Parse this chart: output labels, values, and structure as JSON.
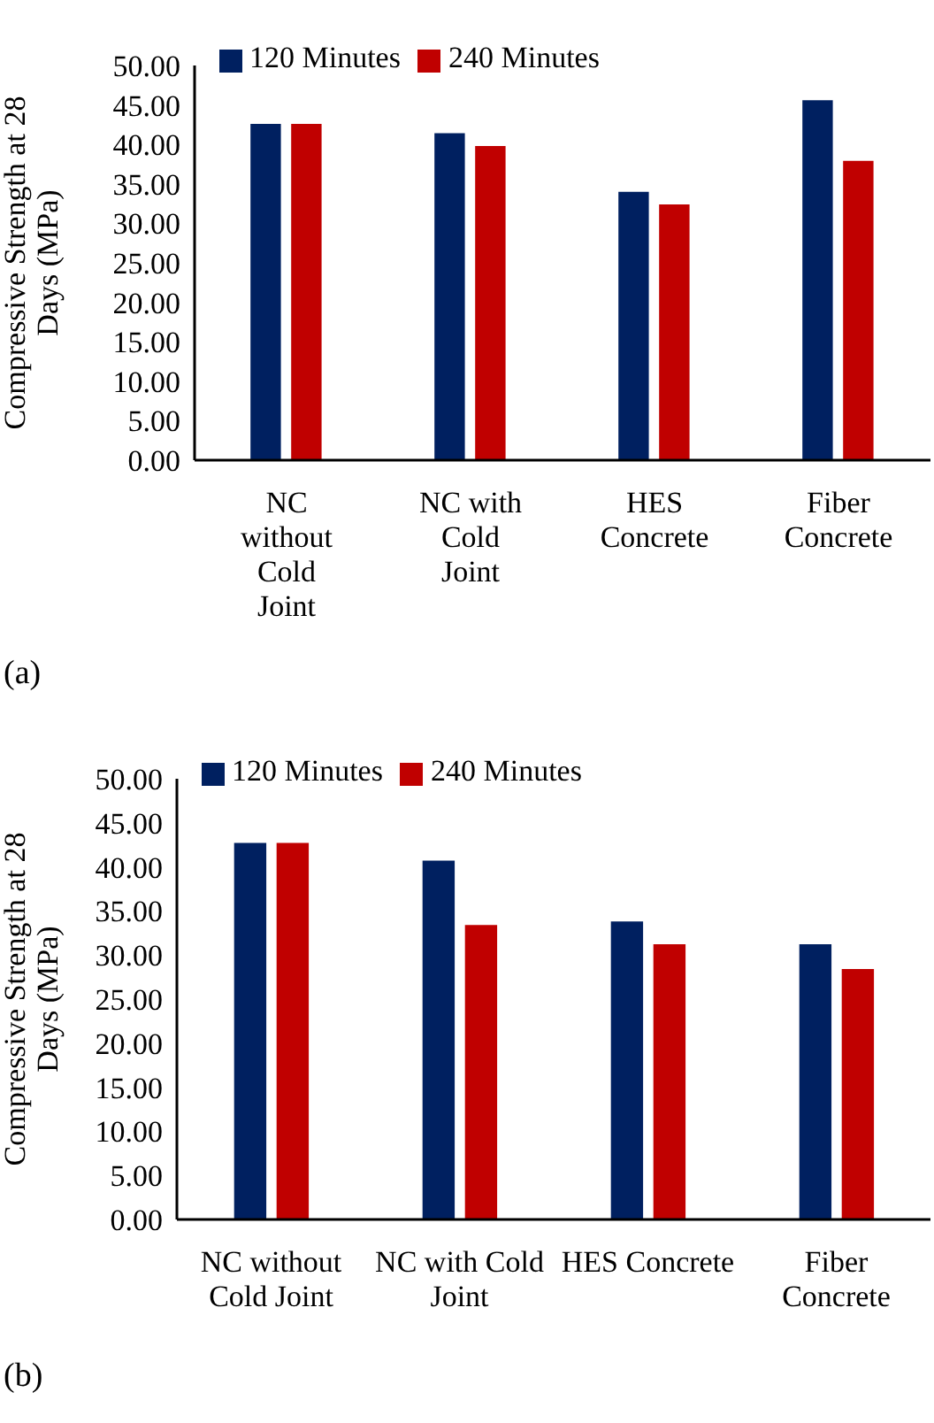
{
  "chart_data": [
    {
      "type": "bar",
      "ylabel": "Compressive Strength at 28 Days (MPa)",
      "categories": [
        "NC without Cold Joint",
        "NC with Cold Joint",
        "HES Concrete",
        "Fiber Concrete"
      ],
      "series": [
        {
          "name": "120 Minutes",
          "color": "#002060",
          "values": [
            42.7,
            41.5,
            34.1,
            45.7
          ]
        },
        {
          "name": "240 Minutes",
          "color": "#c00000",
          "values": [
            42.7,
            39.9,
            32.5,
            38.0
          ]
        }
      ],
      "ylim": [
        0,
        50
      ],
      "yticks": [
        {
          "value": 0,
          "label": "0.00"
        },
        {
          "value": 5,
          "label": "5.00"
        },
        {
          "value": 10,
          "label": "10.00"
        },
        {
          "value": 15,
          "label": "15.00"
        },
        {
          "value": 20,
          "label": "20.00"
        },
        {
          "value": 25,
          "label": "25.00"
        },
        {
          "value": 30,
          "label": "30.00"
        },
        {
          "value": 35,
          "label": "35.00"
        },
        {
          "value": 40,
          "label": "40.00"
        },
        {
          "value": 45,
          "label": "45.00"
        },
        {
          "value": 50,
          "label": "50.00"
        }
      ],
      "grid": false,
      "legend": "top left",
      "annotations": [
        "(a)"
      ]
    },
    {
      "type": "bar",
      "ylabel": "Compressive Strength at 28 Days (MPa)",
      "categories": [
        "NC without Cold Joint",
        "NC with Cold Joint",
        "HES Concrete",
        "Fiber Concrete"
      ],
      "series": [
        {
          "name": "120 Minutes",
          "color": "#002060",
          "values": [
            42.8,
            40.8,
            33.9,
            31.3
          ]
        },
        {
          "name": "240 Minutes",
          "color": "#c00000",
          "values": [
            42.8,
            33.5,
            31.3,
            28.5
          ]
        }
      ],
      "ylim": [
        0,
        50
      ],
      "yticks": [
        {
          "value": 0,
          "label": "0.00"
        },
        {
          "value": 5,
          "label": "5.00"
        },
        {
          "value": 10,
          "label": "10.00"
        },
        {
          "value": 15,
          "label": "15.00"
        },
        {
          "value": 20,
          "label": "20.00"
        },
        {
          "value": 25,
          "label": "25.00"
        },
        {
          "value": 30,
          "label": "30.00"
        },
        {
          "value": 35,
          "label": "35.00"
        },
        {
          "value": 40,
          "label": "40.00"
        },
        {
          "value": 45,
          "label": "45.00"
        },
        {
          "value": 50,
          "label": "50.00"
        }
      ],
      "grid": false,
      "legend": "top left",
      "annotations": [
        "(b)"
      ]
    }
  ]
}
